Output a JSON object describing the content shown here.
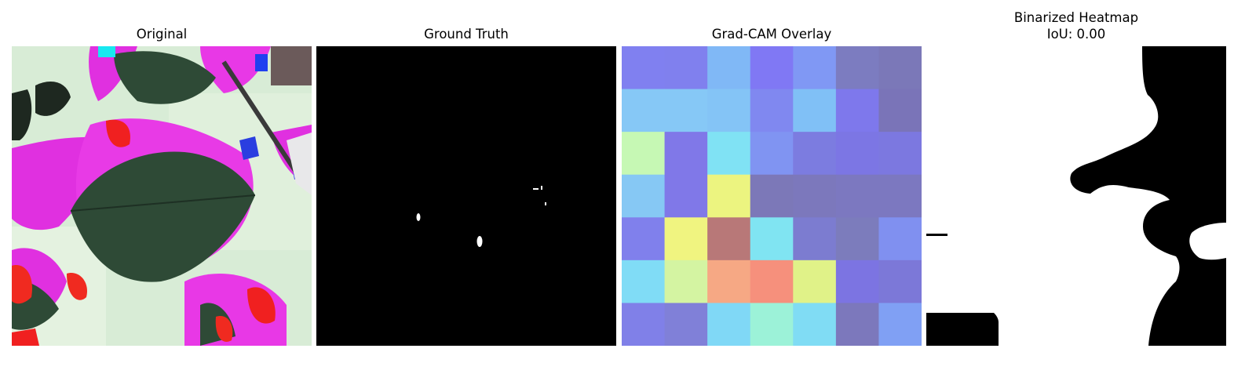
{
  "panels": {
    "original": {
      "title": "Original"
    },
    "ground_truth": {
      "title": "Ground Truth"
    },
    "gradcam": {
      "title": "Grad-CAM Overlay",
      "grid": [
        [
          "#8080f0",
          "#8080ee",
          "#80b8f6",
          "#8078f4",
          "#8098f4",
          "#7c7cc0",
          "#7b78b8"
        ],
        [
          "#86c8f6",
          "#86c8f6",
          "#84c4f6",
          "#8088f0",
          "#80c0f6",
          "#7e78ec",
          "#7a74b8"
        ],
        [
          "#c6f8b4",
          "#8078e8",
          "#80e2f4",
          "#8094f2",
          "#7c7ce0",
          "#7c76e4",
          "#7c78e0"
        ],
        [
          "#86c8f4",
          "#8078e8",
          "#ecf480",
          "#7c78b8",
          "#7c78bc",
          "#7c78c0",
          "#7c78c0"
        ],
        [
          "#8080ec",
          "#f0f480",
          "#b87878",
          "#80e4f2",
          "#7c7cd0",
          "#7c7cbc",
          "#8090f0"
        ],
        [
          "#80dcf6",
          "#d4f4a2",
          "#f6a884",
          "#f6907c",
          "#e0f288",
          "#7c74e2",
          "#7c78d8"
        ],
        [
          "#8080e8",
          "#8080d8",
          "#80d8f6",
          "#9cf2d8",
          "#80dcf4",
          "#7c78bc",
          "#80a0f4"
        ]
      ]
    },
    "binarized": {
      "title_line1": "Binarized Heatmap",
      "title_line2": "IoU: 0.00"
    }
  },
  "colors": {
    "background": "#ffffff",
    "mask_on": "#ffffff",
    "mask_off": "#000000"
  }
}
